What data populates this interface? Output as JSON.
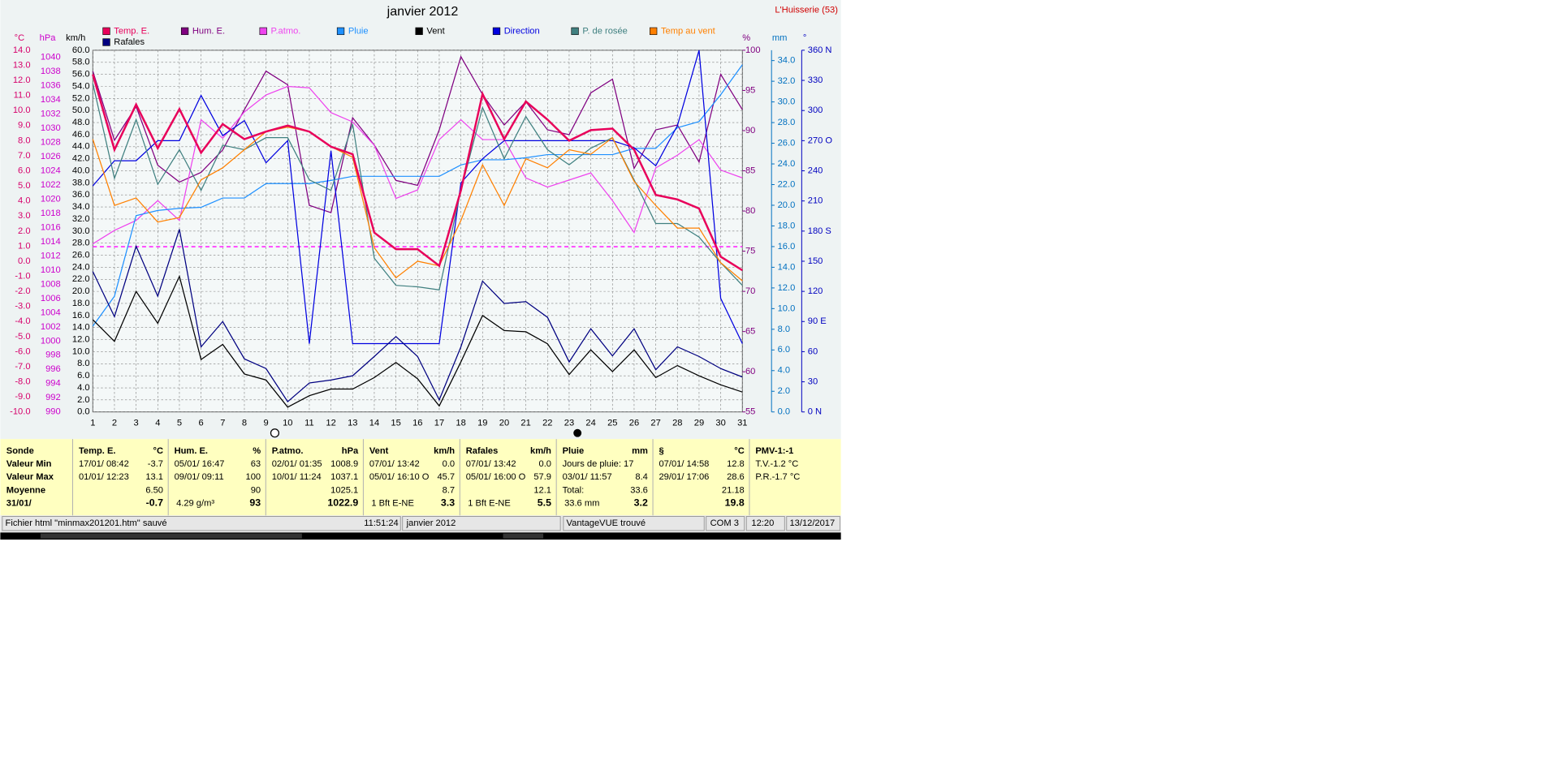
{
  "chart_data": {
    "type": "line",
    "title": "janvier 2012",
    "location": "L'Huisserie (53)",
    "categories": [
      "1",
      "2",
      "3",
      "4",
      "5",
      "6",
      "7",
      "8",
      "9",
      "10",
      "11",
      "12",
      "13",
      "14",
      "15",
      "16",
      "17",
      "18",
      "19",
      "20",
      "21",
      "22",
      "23",
      "24",
      "25",
      "26",
      "27",
      "28",
      "29",
      "30",
      "31"
    ],
    "grid": true,
    "grid_axis": "kmh",
    "axes": {
      "c": {
        "unit": "°C",
        "color": "#d6006b",
        "lim": [
          -10,
          14
        ],
        "ticks": [
          {
            "value": -10,
            "label": "-10.0"
          },
          {
            "value": -9,
            "label": "-9.0"
          },
          {
            "value": -8,
            "label": "-8.0"
          },
          {
            "value": -7,
            "label": "-7.0"
          },
          {
            "value": -6,
            "label": "-6.0"
          },
          {
            "value": -5,
            "label": "-5.0"
          },
          {
            "value": -4,
            "label": "-4.0"
          },
          {
            "value": -3,
            "label": "-3.0"
          },
          {
            "value": -2,
            "label": "-2.0"
          },
          {
            "value": -1,
            "label": "-1.0"
          },
          {
            "value": 0,
            "label": "0.0"
          },
          {
            "value": 1,
            "label": "1.0"
          },
          {
            "value": 2,
            "label": "2.0"
          },
          {
            "value": 3,
            "label": "3.0"
          },
          {
            "value": 4,
            "label": "4.0"
          },
          {
            "value": 5,
            "label": "5.0"
          },
          {
            "value": 6,
            "label": "6.0"
          },
          {
            "value": 7,
            "label": "7.0"
          },
          {
            "value": 8,
            "label": "8.0"
          },
          {
            "value": 9,
            "label": "9.0"
          },
          {
            "value": 10,
            "label": "10.0"
          },
          {
            "value": 11,
            "label": "11.0"
          },
          {
            "value": 12,
            "label": "12.0"
          },
          {
            "value": 13,
            "label": "13.0"
          },
          {
            "value": 14,
            "label": "14.0"
          }
        ]
      },
      "hpa": {
        "unit": "hPa",
        "color": "#cc00cc",
        "lim": [
          990,
          1041
        ],
        "ticks": [
          990,
          992,
          994,
          996,
          998,
          1000,
          1002,
          1004,
          1006,
          1008,
          1010,
          1012,
          1014,
          1016,
          1018,
          1020,
          1022,
          1024,
          1026,
          1028,
          1030,
          1032,
          1034,
          1036,
          1038,
          1040
        ]
      },
      "kmh": {
        "unit": "km/h",
        "color": "#000000",
        "lim": [
          0,
          60
        ],
        "ticks": [
          {
            "value": 0,
            "label": "0.0"
          },
          {
            "value": 2,
            "label": "2.0"
          },
          {
            "value": 4,
            "label": "4.0"
          },
          {
            "value": 6,
            "label": "6.0"
          },
          {
            "value": 8,
            "label": "8.0"
          },
          {
            "value": 10,
            "label": "10.0"
          },
          {
            "value": 12,
            "label": "12.0"
          },
          {
            "value": 14,
            "label": "14.0"
          },
          {
            "value": 16,
            "label": "16.0"
          },
          {
            "value": 18,
            "label": "18.0"
          },
          {
            "value": 20,
            "label": "20.0"
          },
          {
            "value": 22,
            "label": "22.0"
          },
          {
            "value": 24,
            "label": "24.0"
          },
          {
            "value": 26,
            "label": "26.0"
          },
          {
            "value": 28,
            "label": "28.0"
          },
          {
            "value": 30,
            "label": "30.0"
          },
          {
            "value": 32,
            "label": "32.0"
          },
          {
            "value": 34,
            "label": "34.0"
          },
          {
            "value": 36,
            "label": "36.0"
          },
          {
            "value": 38,
            "label": "38.0"
          },
          {
            "value": 40,
            "label": "40.0"
          },
          {
            "value": 42,
            "label": "42.0"
          },
          {
            "value": 44,
            "label": "44.0"
          },
          {
            "value": 46,
            "label": "46.0"
          },
          {
            "value": 48,
            "label": "48.0"
          },
          {
            "value": 50,
            "label": "50.0"
          },
          {
            "value": 52,
            "label": "52.0"
          },
          {
            "value": 54,
            "label": "54.0"
          },
          {
            "value": 56,
            "label": "56.0"
          },
          {
            "value": 58,
            "label": "58.0"
          },
          {
            "value": 60,
            "label": "60.0"
          }
        ]
      },
      "pct": {
        "unit": "%",
        "color": "#800080",
        "lim": [
          55,
          100
        ],
        "ticks": [
          55,
          60,
          65,
          70,
          75,
          80,
          85,
          90,
          95,
          100
        ]
      },
      "mm": {
        "unit": "mm",
        "color": "#0070c0",
        "lim": [
          0,
          35
        ],
        "ticks": [
          {
            "value": 0,
            "label": "0.0"
          },
          {
            "value": 2,
            "label": "2.0"
          },
          {
            "value": 4,
            "label": "4.0"
          },
          {
            "value": 6,
            "label": "6.0"
          },
          {
            "value": 8,
            "label": "8.0"
          },
          {
            "value": 10,
            "label": "10.0"
          },
          {
            "value": 12,
            "label": "12.0"
          },
          {
            "value": 14,
            "label": "14.0"
          },
          {
            "value": 16,
            "label": "16.0"
          },
          {
            "value": 18,
            "label": "18.0"
          },
          {
            "value": 20,
            "label": "20.0"
          },
          {
            "value": 22,
            "label": "22.0"
          },
          {
            "value": 24,
            "label": "24.0"
          },
          {
            "value": 26,
            "label": "26.0"
          },
          {
            "value": 28,
            "label": "28.0"
          },
          {
            "value": 30,
            "label": "30.0"
          },
          {
            "value": 32,
            "label": "32.0"
          },
          {
            "value": 34,
            "label": "34.0"
          }
        ]
      },
      "deg": {
        "unit": "°",
        "color": "#0000c0",
        "lim": [
          0,
          360
        ],
        "ticks": [
          {
            "value": 0,
            "label": "0  N"
          },
          30,
          60,
          {
            "value": 90,
            "label": "90  E"
          },
          120,
          150,
          {
            "value": 180,
            "label": "180 S"
          },
          210,
          240,
          {
            "value": 270,
            "label": "270 O"
          },
          300,
          330,
          {
            "value": 360,
            "label": "360 N"
          }
        ]
      }
    },
    "pressure_reference": 1013.3,
    "pressure_reference_color": "#ff44ff",
    "series": [
      {
        "name": "Temp. E.",
        "color": "#e8005a",
        "axis": "c",
        "width": 2,
        "values": [
          12.4,
          7.4,
          10.4,
          7.5,
          10.1,
          7.2,
          9.1,
          8.1,
          8.6,
          9.0,
          8.6,
          7.6,
          7.1,
          1.9,
          0.8,
          0.8,
          -0.3,
          4.7,
          11.1,
          8.1,
          10.6,
          9.4,
          8.0,
          8.7,
          8.8,
          7.4,
          4.4,
          4.1,
          3.5,
          0.3,
          -0.6
        ]
      },
      {
        "name": "Hum. E.",
        "color": "#800080",
        "axis": "pct",
        "width": 1,
        "values": [
          97.4,
          88.8,
          93.0,
          85.7,
          83.6,
          84.8,
          87.6,
          92.6,
          97.4,
          95.7,
          80.7,
          79.8,
          91.6,
          88.2,
          83.8,
          83.2,
          90.1,
          99.2,
          94.5,
          90.7,
          93.6,
          90.1,
          89.5,
          94.7,
          96.4,
          85.3,
          90.1,
          90.7,
          86.1,
          97.0,
          92.6
        ]
      },
      {
        "name": "P.atmo.",
        "color": "#ee44ee",
        "axis": "hpa",
        "width": 1,
        "values": [
          1013.7,
          1015.6,
          1017.0,
          1019.8,
          1017.0,
          1031.2,
          1028.6,
          1032.3,
          1034.7,
          1035.9,
          1035.7,
          1032.2,
          1030.9,
          1027.6,
          1020.1,
          1021.3,
          1028.4,
          1031.2,
          1028.4,
          1028.4,
          1023.0,
          1021.7,
          1022.7,
          1023.7,
          1019.8,
          1015.3,
          1024.4,
          1026.2,
          1028.4,
          1024.1,
          1023.0
        ]
      },
      {
        "name": "Pluie",
        "color": "#1e90ff",
        "axis": "mm",
        "width": 1,
        "values": [
          8.3,
          11.2,
          19.0,
          19.5,
          19.7,
          19.8,
          20.7,
          20.7,
          22.1,
          22.1,
          22.1,
          22.4,
          22.8,
          22.8,
          22.8,
          22.8,
          22.8,
          23.9,
          24.4,
          24.4,
          24.6,
          24.9,
          24.9,
          24.9,
          24.9,
          25.5,
          25.5,
          27.5,
          28.1,
          30.7,
          33.6
        ]
      },
      {
        "name": "Vent",
        "color": "#000000",
        "axis": "kmh",
        "width": 1,
        "values": [
          15.3,
          11.7,
          20.0,
          14.7,
          22.5,
          8.7,
          11.2,
          6.3,
          5.3,
          0.8,
          2.7,
          3.8,
          3.8,
          5.7,
          8.2,
          5.5,
          1.0,
          8.3,
          16.0,
          13.5,
          13.3,
          11.3,
          6.2,
          10.3,
          6.7,
          10.3,
          5.7,
          7.7,
          6.0,
          4.5,
          3.3
        ]
      },
      {
        "name": "Direction",
        "color": "#0000e0",
        "axis": "deg",
        "width": 1,
        "values": [
          225,
          250,
          250,
          270,
          270,
          315,
          275,
          290,
          248,
          270,
          68,
          260,
          68,
          68,
          68,
          68,
          68,
          228,
          252,
          270,
          270,
          270,
          270,
          270,
          270,
          263,
          245,
          285,
          360,
          113,
          68
        ]
      },
      {
        "name": "P. de rosée",
        "color": "#408080",
        "axis": "c",
        "width": 1,
        "values": [
          11.8,
          5.5,
          9.4,
          5.1,
          7.4,
          4.7,
          7.7,
          7.4,
          8.2,
          8.2,
          5.4,
          4.7,
          9.1,
          0.2,
          -1.6,
          -1.7,
          -1.9,
          4.7,
          10.2,
          6.8,
          9.6,
          7.4,
          6.4,
          7.5,
          8.2,
          5.4,
          2.5,
          2.5,
          1.6,
          -0.1,
          -1.6
        ]
      },
      {
        "name": "Temp au vent",
        "color": "#ff8000",
        "axis": "c",
        "width": 1,
        "values": [
          8.1,
          3.7,
          4.2,
          2.6,
          2.9,
          5.4,
          6.2,
          7.4,
          8.6,
          8.9,
          8.6,
          7.6,
          6.9,
          0.9,
          -1.1,
          0.0,
          -0.3,
          2.7,
          6.4,
          3.7,
          6.8,
          6.2,
          7.4,
          7.1,
          8.2,
          5.3,
          3.7,
          2.2,
          2.2,
          -0.1,
          -1.3
        ]
      },
      {
        "name": "Rafales",
        "color": "#000080",
        "axis": "kmh",
        "width": 1,
        "values": [
          23.3,
          15.8,
          27.5,
          19.2,
          30.3,
          10.8,
          15.0,
          8.8,
          7.2,
          1.7,
          4.8,
          5.3,
          6.0,
          9.2,
          12.5,
          9.2,
          2.0,
          10.8,
          21.7,
          18.0,
          18.3,
          15.7,
          8.3,
          13.8,
          9.3,
          13.8,
          7.0,
          10.8,
          9.2,
          7.2,
          5.8
        ]
      }
    ]
  },
  "table": {
    "corner": "Sonde",
    "row_labels": [
      "Valeur Min",
      "Valeur Max",
      "Moyenne",
      "31/01/"
    ],
    "columns": [
      {
        "title": "Temp. E.",
        "unit": "°C",
        "rows": [
          {
            "left": "17/01/  08:42",
            "right": "-3.7"
          },
          {
            "left": "01/01/  12:23",
            "right": "13.1"
          },
          {
            "right": "6.50"
          },
          {
            "right": "-0.7"
          }
        ]
      },
      {
        "title": "Hum. E.",
        "unit": "%",
        "rows": [
          {
            "left": "05/01/  16:47",
            "right": "63"
          },
          {
            "left": "09/01/  09:11",
            "right": "100"
          },
          {
            "right": "90"
          },
          {
            "left": "4.29 g/m³",
            "right": "93"
          }
        ]
      },
      {
        "title": "P.atmo.",
        "unit": "hPa",
        "rows": [
          {
            "left": "02/01/  01:35",
            "right": "1008.9"
          },
          {
            "left": "10/01/  11:24",
            "right": "1037.1"
          },
          {
            "right": "1025.1"
          },
          {
            "right": "1022.9"
          }
        ]
      },
      {
        "title": "Vent",
        "unit": "km/h",
        "rows": [
          {
            "left": "07/01/  13:42",
            "right": "0.0"
          },
          {
            "left": "05/01/  16:10  O",
            "right": "45.7"
          },
          {
            "right": "8.7"
          },
          {
            "left": "1 Bft E-NE",
            "right": "3.3"
          }
        ]
      },
      {
        "title": "Rafales",
        "unit": "km/h",
        "rows": [
          {
            "left": "07/01/  13:42",
            "right": "0.0"
          },
          {
            "left": "05/01/  16:00  O",
            "right": "57.9"
          },
          {
            "right": "12.1"
          },
          {
            "left": "1 Bft E-NE",
            "right": "5.5"
          }
        ]
      },
      {
        "title": "Pluie",
        "unit": "mm",
        "rows": [
          {
            "left": "Jours de pluie: 17"
          },
          {
            "left": "03/01/  11:57",
            "right": "8.4"
          },
          {
            "left": "Total:",
            "right": "33.6"
          },
          {
            "left": "33.6 mm",
            "right": "3.2"
          }
        ]
      },
      {
        "title": "§",
        "unit": "°C",
        "rows": [
          {
            "left": "07/01/  14:58",
            "right": "12.8"
          },
          {
            "left": "29/01/  17:06",
            "right": "28.6"
          },
          {
            "right": "21.18"
          },
          {
            "right": "19.8"
          }
        ]
      },
      {
        "title": "PMV-1:-1",
        "rows": [
          {
            "left": "T.V.-1.2 °C"
          },
          {
            "left": "P.R.-1.7 °C"
          }
        ]
      }
    ]
  },
  "status": [
    "Fichier html  \"minmax201201.htm\"  sauvé",
    "11:51:24",
    "janvier 2012",
    "VantageVUE trouvé",
    "COM 3",
    "12:20",
    "13/12/2017"
  ]
}
